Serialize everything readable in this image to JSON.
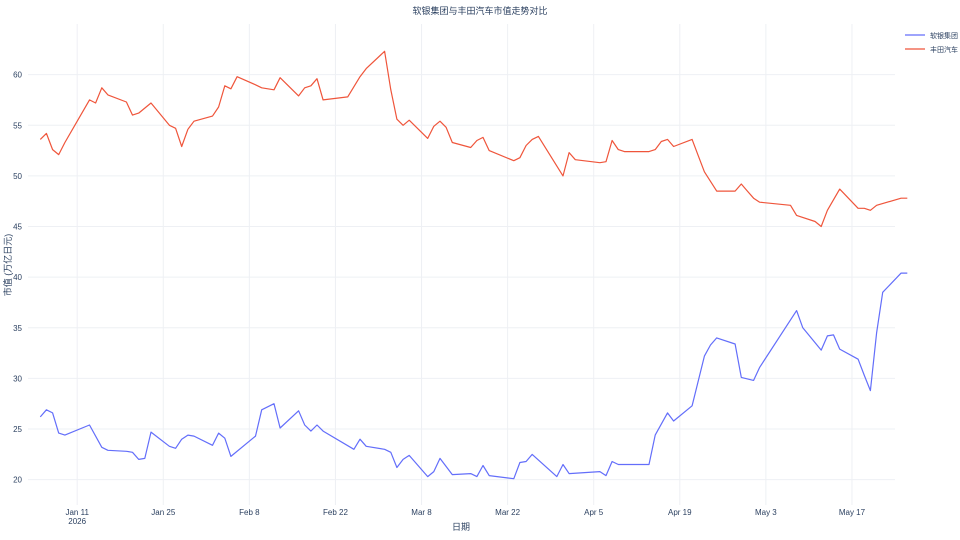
{
  "chart_data": {
    "type": "line",
    "title": "软银集团与丰田汽车市值走势对比",
    "xlabel": "日期",
    "ylabel": "市值 (万亿日元)",
    "x_range": [
      "2026-01-03",
      "2026-05-24"
    ],
    "ylim": [
      17.5,
      65
    ],
    "y_ticks": [
      20,
      25,
      30,
      35,
      40,
      45,
      50,
      55,
      60
    ],
    "x_ticks": [
      {
        "date": "2026-01-11",
        "label": "Jan 11",
        "sublabel": "2026"
      },
      {
        "date": "2026-01-25",
        "label": "Jan 25",
        "sublabel": ""
      },
      {
        "date": "2026-02-08",
        "label": "Feb 8",
        "sublabel": ""
      },
      {
        "date": "2026-02-22",
        "label": "Feb 22",
        "sublabel": ""
      },
      {
        "date": "2026-03-08",
        "label": "Mar 8",
        "sublabel": ""
      },
      {
        "date": "2026-03-22",
        "label": "Mar 22",
        "sublabel": ""
      },
      {
        "date": "2026-04-05",
        "label": "Apr 5",
        "sublabel": ""
      },
      {
        "date": "2026-04-19",
        "label": "Apr 19",
        "sublabel": ""
      },
      {
        "date": "2026-05-03",
        "label": "May 3",
        "sublabel": ""
      },
      {
        "date": "2026-05-17",
        "label": "May 17",
        "sublabel": ""
      }
    ],
    "grid": true,
    "legend_position": "top-right",
    "series": [
      {
        "name": "软银集团",
        "color": "#636efa",
        "points": [
          [
            "2026-01-05",
            26.2
          ],
          [
            "2026-01-06",
            26.9
          ],
          [
            "2026-01-07",
            26.6
          ],
          [
            "2026-01-08",
            24.6
          ],
          [
            "2026-01-09",
            24.4
          ],
          [
            "2026-01-13",
            25.4
          ],
          [
            "2026-01-15",
            23.2
          ],
          [
            "2026-01-16",
            22.9
          ],
          [
            "2026-01-19",
            22.8
          ],
          [
            "2026-01-20",
            22.7
          ],
          [
            "2026-01-21",
            22.0
          ],
          [
            "2026-01-22",
            22.1
          ],
          [
            "2026-01-23",
            24.7
          ],
          [
            "2026-01-26",
            23.3
          ],
          [
            "2026-01-27",
            23.1
          ],
          [
            "2026-01-28",
            24.0
          ],
          [
            "2026-01-29",
            24.4
          ],
          [
            "2026-01-30",
            24.3
          ],
          [
            "2026-02-02",
            23.4
          ],
          [
            "2026-02-03",
            24.6
          ],
          [
            "2026-02-04",
            24.1
          ],
          [
            "2026-02-05",
            22.3
          ],
          [
            "2026-02-09",
            24.3
          ],
          [
            "2026-02-10",
            26.9
          ],
          [
            "2026-02-12",
            27.5
          ],
          [
            "2026-02-13",
            25.1
          ],
          [
            "2026-02-16",
            26.8
          ],
          [
            "2026-02-17",
            25.4
          ],
          [
            "2026-02-18",
            24.8
          ],
          [
            "2026-02-19",
            25.4
          ],
          [
            "2026-02-20",
            24.8
          ],
          [
            "2026-02-25",
            23.0
          ],
          [
            "2026-02-26",
            24.0
          ],
          [
            "2026-02-27",
            23.3
          ],
          [
            "2026-03-02",
            23.0
          ],
          [
            "2026-03-03",
            22.7
          ],
          [
            "2026-03-04",
            21.2
          ],
          [
            "2026-03-05",
            22.0
          ],
          [
            "2026-03-06",
            22.4
          ],
          [
            "2026-03-09",
            20.3
          ],
          [
            "2026-03-10",
            20.8
          ],
          [
            "2026-03-11",
            22.1
          ],
          [
            "2026-03-13",
            20.5
          ],
          [
            "2026-03-16",
            20.6
          ],
          [
            "2026-03-17",
            20.3
          ],
          [
            "2026-03-18",
            21.4
          ],
          [
            "2026-03-19",
            20.4
          ],
          [
            "2026-03-23",
            20.1
          ],
          [
            "2026-03-24",
            21.7
          ],
          [
            "2026-03-25",
            21.8
          ],
          [
            "2026-03-26",
            22.5
          ],
          [
            "2026-03-30",
            20.3
          ],
          [
            "2026-03-31",
            21.5
          ],
          [
            "2026-04-01",
            20.6
          ],
          [
            "2026-04-06",
            20.8
          ],
          [
            "2026-04-07",
            20.4
          ],
          [
            "2026-04-08",
            21.8
          ],
          [
            "2026-04-09",
            21.5
          ],
          [
            "2026-04-14",
            21.5
          ],
          [
            "2026-04-15",
            24.4
          ],
          [
            "2026-04-17",
            26.6
          ],
          [
            "2026-04-18",
            25.8
          ],
          [
            "2026-04-21",
            27.3
          ],
          [
            "2026-04-23",
            32.2
          ],
          [
            "2026-04-24",
            33.3
          ],
          [
            "2026-04-25",
            34.0
          ],
          [
            "2026-04-28",
            33.4
          ],
          [
            "2026-04-29",
            30.1
          ],
          [
            "2026-05-01",
            29.8
          ],
          [
            "2026-05-02",
            31.1
          ],
          [
            "2026-05-08",
            36.7
          ],
          [
            "2026-05-09",
            35.0
          ],
          [
            "2026-05-12",
            32.8
          ],
          [
            "2026-05-13",
            34.2
          ],
          [
            "2026-05-14",
            34.3
          ],
          [
            "2026-05-15",
            32.9
          ],
          [
            "2026-05-18",
            31.9
          ],
          [
            "2026-05-19",
            30.3
          ],
          [
            "2026-05-20",
            28.8
          ],
          [
            "2026-05-21",
            34.5
          ],
          [
            "2026-05-22",
            38.5
          ],
          [
            "2026-05-25",
            40.4
          ],
          [
            "2026-05-26",
            40.4
          ]
        ]
      },
      {
        "name": "丰田汽车",
        "color": "#ef553b",
        "points": [
          [
            "2026-01-05",
            53.6
          ],
          [
            "2026-01-06",
            54.2
          ],
          [
            "2026-01-07",
            52.6
          ],
          [
            "2026-01-08",
            52.1
          ],
          [
            "2026-01-09",
            53.3
          ],
          [
            "2026-01-13",
            57.5
          ],
          [
            "2026-01-14",
            57.2
          ],
          [
            "2026-01-15",
            58.7
          ],
          [
            "2026-01-16",
            58.0
          ],
          [
            "2026-01-19",
            57.3
          ],
          [
            "2026-01-20",
            56.0
          ],
          [
            "2026-01-21",
            56.2
          ],
          [
            "2026-01-23",
            57.2
          ],
          [
            "2026-01-26",
            55.0
          ],
          [
            "2026-01-27",
            54.7
          ],
          [
            "2026-01-28",
            52.9
          ],
          [
            "2026-01-29",
            54.6
          ],
          [
            "2026-01-30",
            55.4
          ],
          [
            "2026-02-02",
            55.9
          ],
          [
            "2026-02-03",
            56.8
          ],
          [
            "2026-02-04",
            58.9
          ],
          [
            "2026-02-05",
            58.6
          ],
          [
            "2026-02-06",
            59.8
          ],
          [
            "2026-02-09",
            59.0
          ],
          [
            "2026-02-10",
            58.7
          ],
          [
            "2026-02-12",
            58.5
          ],
          [
            "2026-02-13",
            59.7
          ],
          [
            "2026-02-16",
            57.9
          ],
          [
            "2026-02-17",
            58.7
          ],
          [
            "2026-02-18",
            58.9
          ],
          [
            "2026-02-19",
            59.6
          ],
          [
            "2026-02-20",
            57.5
          ],
          [
            "2026-02-24",
            57.8
          ],
          [
            "2026-02-26",
            59.8
          ],
          [
            "2026-02-27",
            60.6
          ],
          [
            "2026-03-02",
            62.3
          ],
          [
            "2026-03-03",
            58.5
          ],
          [
            "2026-03-04",
            55.6
          ],
          [
            "2026-03-05",
            55.0
          ],
          [
            "2026-03-06",
            55.5
          ],
          [
            "2026-03-09",
            53.7
          ],
          [
            "2026-03-10",
            54.9
          ],
          [
            "2026-03-11",
            55.4
          ],
          [
            "2026-03-12",
            54.8
          ],
          [
            "2026-03-13",
            53.3
          ],
          [
            "2026-03-16",
            52.8
          ],
          [
            "2026-03-17",
            53.5
          ],
          [
            "2026-03-18",
            53.8
          ],
          [
            "2026-03-19",
            52.5
          ],
          [
            "2026-03-23",
            51.5
          ],
          [
            "2026-03-24",
            51.8
          ],
          [
            "2026-03-25",
            53.0
          ],
          [
            "2026-03-26",
            53.6
          ],
          [
            "2026-03-27",
            53.9
          ],
          [
            "2026-03-31",
            50.0
          ],
          [
            "2026-04-01",
            52.3
          ],
          [
            "2026-04-02",
            51.6
          ],
          [
            "2026-04-06",
            51.3
          ],
          [
            "2026-04-07",
            51.4
          ],
          [
            "2026-04-08",
            53.5
          ],
          [
            "2026-04-09",
            52.6
          ],
          [
            "2026-04-10",
            52.4
          ],
          [
            "2026-04-14",
            52.4
          ],
          [
            "2026-04-15",
            52.6
          ],
          [
            "2026-04-16",
            53.4
          ],
          [
            "2026-04-17",
            53.6
          ],
          [
            "2026-04-18",
            52.9
          ],
          [
            "2026-04-21",
            53.6
          ],
          [
            "2026-04-22",
            52.0
          ],
          [
            "2026-04-23",
            50.4
          ],
          [
            "2026-04-25",
            48.5
          ],
          [
            "2026-04-28",
            48.5
          ],
          [
            "2026-04-29",
            49.2
          ],
          [
            "2026-04-30",
            48.5
          ],
          [
            "2026-05-01",
            47.8
          ],
          [
            "2026-05-02",
            47.4
          ],
          [
            "2026-05-07",
            47.1
          ],
          [
            "2026-05-08",
            46.1
          ],
          [
            "2026-05-11",
            45.5
          ],
          [
            "2026-05-12",
            45.0
          ],
          [
            "2026-05-13",
            46.6
          ],
          [
            "2026-05-15",
            48.7
          ],
          [
            "2026-05-18",
            46.8
          ],
          [
            "2026-05-19",
            46.8
          ],
          [
            "2026-05-20",
            46.6
          ],
          [
            "2026-05-21",
            47.1
          ],
          [
            "2026-05-25",
            47.8
          ],
          [
            "2026-05-26",
            47.8
          ]
        ]
      }
    ]
  }
}
